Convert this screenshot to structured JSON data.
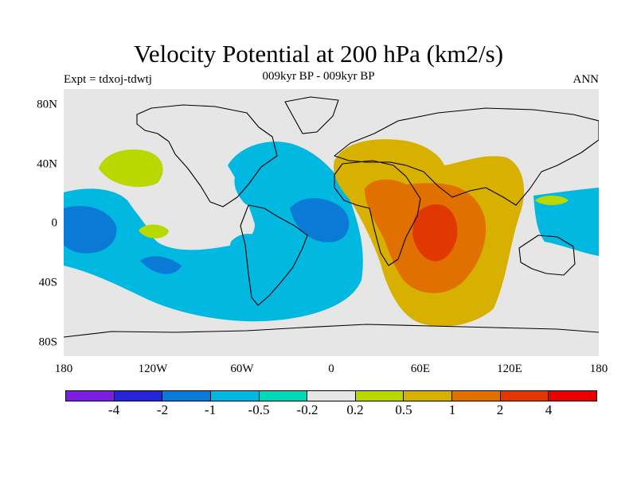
{
  "title": "Velocity Potential at 200 hPa (km2/s)",
  "subtitle": "009kyr BP - 009kyr BP",
  "left_label": "Expt = tdxoj-tdwtj",
  "right_label": "ANN",
  "y_axis_labels": [
    "80N",
    "40N",
    "0",
    "40S",
    "80S"
  ],
  "x_axis_labels": [
    "180",
    "120W",
    "60W",
    "0",
    "60E",
    "120E",
    "180"
  ],
  "colorbar": {
    "colors": [
      "#7a1fe0",
      "#2525d6",
      "#0a7ad6",
      "#00b8e0",
      "#00d8b8",
      "#e6e6e6",
      "#b8d800",
      "#d8b000",
      "#e07000",
      "#e03800",
      "#e80000"
    ],
    "labels": [
      "-4",
      "-2",
      "-1",
      "-0.5",
      "-0.2",
      "0.2",
      "0.5",
      "1",
      "2",
      "4"
    ]
  },
  "chart_data": {
    "type": "heatmap",
    "title": "Velocity Potential at 200 hPa (km2/s)",
    "projection": "cylindrical equidistant",
    "lon_range": [
      -180,
      180
    ],
    "lat_range": [
      -90,
      90
    ],
    "levels": [
      -4,
      -2,
      -1,
      -0.5,
      -0.2,
      0.2,
      0.5,
      1,
      2,
      4
    ],
    "features": [
      {
        "name": "west-pacific-mid-negative",
        "level": -0.5
      },
      {
        "name": "central-pacific-min",
        "level": -1
      },
      {
        "name": "south-america-negative",
        "level": -0.5
      },
      {
        "name": "tropical-atlantic-min",
        "level": -1
      },
      {
        "name": "africa-indian-positive",
        "level": 0.5
      },
      {
        "name": "indian-ocean-max",
        "level": 1
      },
      {
        "name": "arabian-sea-peak",
        "level": 2
      },
      {
        "name": "north-pacific-positive",
        "level": 0.2
      }
    ]
  }
}
